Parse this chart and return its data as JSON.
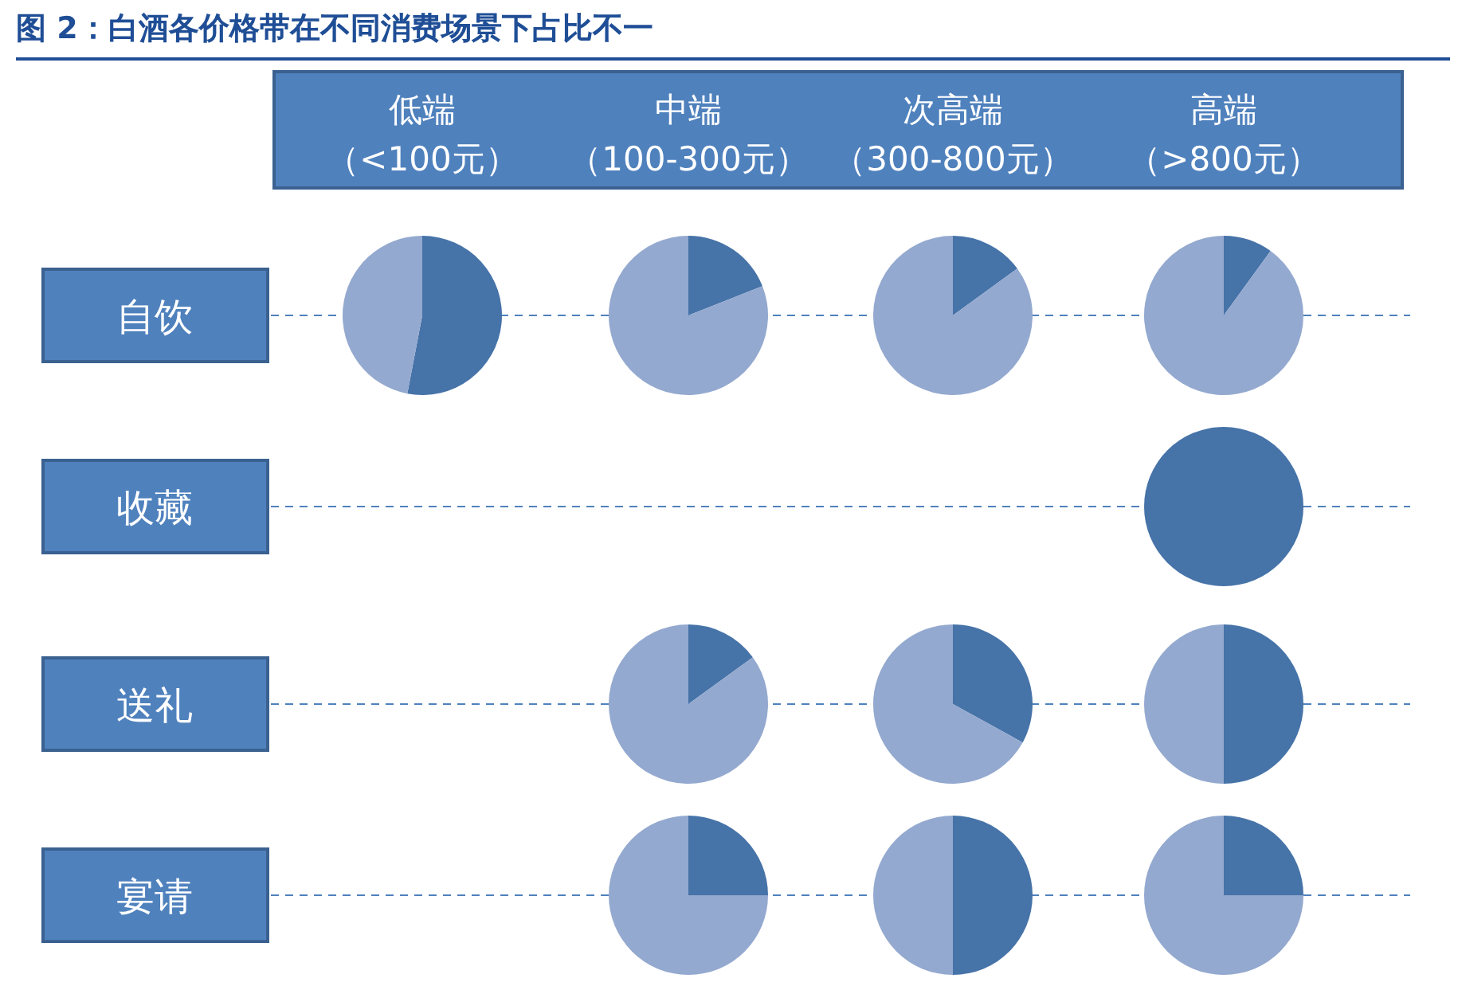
{
  "chart_data": [
    {
      "type": "other",
      "title": "图 2：白酒各价格带在不同消费场景下占比不一",
      "annotations": [
        "低端",
        "（<100元）",
        "中端",
        "（100-300元）",
        "次高端",
        "（300-800元）",
        "高端",
        "（>800元）",
        "自饮",
        "收藏",
        "送礼",
        "宴请"
      ]
    },
    {
      "type": "pie",
      "categories": [
        null,
        null
      ],
      "values": [
        53,
        47
      ],
      "colors": [
        "#4673a8",
        "#94a9cf"
      ]
    },
    {
      "type": "pie",
      "categories": [
        null,
        null
      ],
      "values": [
        19,
        81
      ],
      "colors": [
        "#4673a8",
        "#94a9cf"
      ]
    },
    {
      "type": "pie",
      "categories": [
        null,
        null
      ],
      "values": [
        15,
        85
      ],
      "colors": [
        "#4673a8",
        "#94a9cf"
      ]
    },
    {
      "type": "pie",
      "categories": [
        null,
        null
      ],
      "values": [
        10,
        90
      ],
      "colors": [
        "#4673a8",
        "#94a9cf"
      ]
    },
    {
      "type": "pie",
      "categories": [
        null,
        null
      ],
      "values": [
        100,
        0
      ],
      "colors": [
        "#4673a8",
        "#94a9cf"
      ]
    },
    {
      "type": "pie",
      "categories": [
        null,
        null
      ],
      "values": [
        15,
        85
      ],
      "colors": [
        "#4673a8",
        "#94a9cf"
      ]
    },
    {
      "type": "pie",
      "categories": [
        null,
        null
      ],
      "values": [
        33,
        67
      ],
      "colors": [
        "#4673a8",
        "#94a9cf"
      ]
    },
    {
      "type": "pie",
      "categories": [
        null,
        null
      ],
      "values": [
        50,
        50
      ],
      "colors": [
        "#4673a8",
        "#94a9cf"
      ]
    },
    {
      "type": "pie",
      "categories": [
        null,
        null
      ],
      "values": [
        25,
        75
      ],
      "colors": [
        "#4673a8",
        "#94a9cf"
      ]
    },
    {
      "type": "pie",
      "categories": [
        null,
        null
      ],
      "values": [
        50,
        50
      ],
      "colors": [
        "#4673a8",
        "#94a9cf"
      ]
    },
    {
      "type": "pie",
      "categories": [
        null,
        null
      ],
      "values": [
        25,
        75
      ],
      "colors": [
        "#4673a8",
        "#94a9cf"
      ]
    }
  ]
}
